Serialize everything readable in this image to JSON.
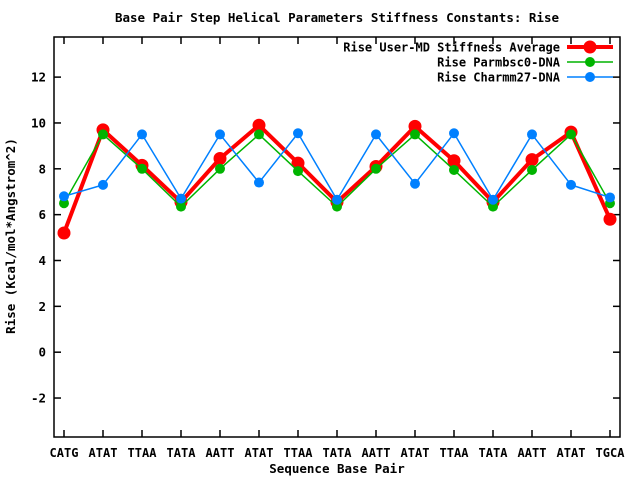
{
  "chart_data": {
    "type": "line",
    "title": "Base Pair Step Helical Parameters Stiffness Constants: Rise",
    "xlabel": "Sequence Base Pair",
    "ylabel": "Rise (Kcal/mol*Angstrom^2)",
    "categories": [
      "CATG",
      "ATAT",
      "TTAA",
      "TATA",
      "AATT",
      "ATAT",
      "TTAA",
      "TATA",
      "AATT",
      "ATAT",
      "TTAA",
      "TATA",
      "AATT",
      "ATAT",
      "TGCA"
    ],
    "yticks": [
      -2,
      0,
      2,
      4,
      6,
      8,
      10,
      12
    ],
    "ylim": [
      -3.7,
      13.75
    ],
    "grid": false,
    "legend_position": "top-right-inside",
    "background_color": "#ffffff",
    "axis_color": "#000000",
    "series": [
      {
        "name": "Rise User-MD Stiffness Average",
        "color": "#ff0000",
        "line_width": 4,
        "marker": "circle",
        "marker_radius": 6.5,
        "values": [
          5.2,
          9.7,
          8.15,
          6.55,
          8.45,
          9.9,
          8.25,
          6.55,
          8.1,
          9.85,
          8.35,
          6.55,
          8.4,
          9.6,
          5.8
        ]
      },
      {
        "name": "Rise Parmbsc0-DNA",
        "color": "#00b400",
        "line_width": 1.5,
        "marker": "circle",
        "marker_radius": 5,
        "values": [
          6.5,
          9.5,
          8.0,
          6.35,
          8.0,
          9.5,
          7.9,
          6.35,
          8.0,
          9.5,
          7.95,
          6.35,
          7.95,
          9.5,
          6.5
        ]
      },
      {
        "name": "Rise Charmm27-DNA",
        "color": "#0080ff",
        "line_width": 1.5,
        "marker": "circle",
        "marker_radius": 5,
        "values": [
          6.8,
          7.3,
          9.5,
          6.7,
          9.5,
          7.4,
          9.55,
          6.65,
          9.5,
          7.35,
          9.55,
          6.65,
          9.5,
          7.3,
          6.75
        ]
      }
    ]
  }
}
